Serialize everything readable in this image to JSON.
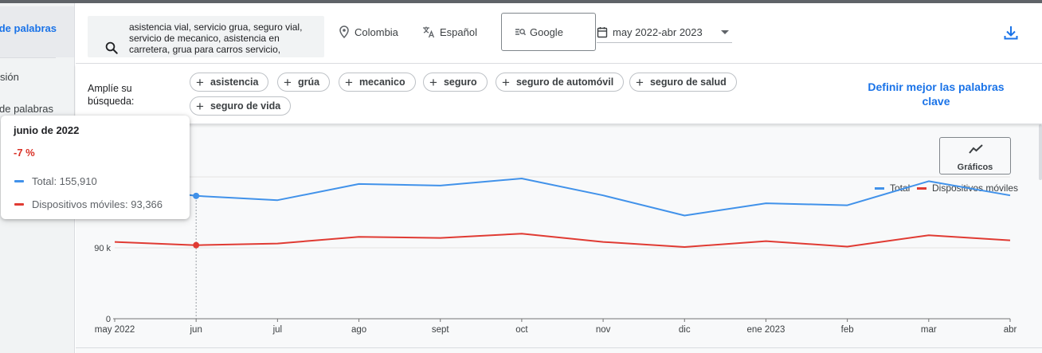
{
  "sidebar": {
    "items": [
      {
        "label": "de palabras",
        "active": true
      },
      {
        "label": "sión"
      },
      {
        "label": "de palabras"
      }
    ]
  },
  "toolbar": {
    "search_query": "asistencia vial, servicio grua, seguro vial, servicio de mecanico, asistencia en carretera, grua para carros servicio,",
    "location": "Colombia",
    "language": "Español",
    "search_engine": "Google",
    "date_range": "may 2022-abr 2023"
  },
  "broaden": {
    "label": "Amplíe su búsqueda:",
    "chips": [
      "asistencia",
      "grúa",
      "mecanico",
      "seguro",
      "seguro de automóvil",
      "seguro de salud",
      "seguro de vida"
    ],
    "refine_link": "Definir mejor las palabras clave"
  },
  "graphs_button_label": "Gráficos",
  "colors": {
    "total": "#4192ea",
    "mobile": "#e03b33",
    "link": "#1a73e8",
    "negative": "#d93025"
  },
  "tooltip": {
    "title": "junio de 2022",
    "change": "-7 %",
    "rows": [
      {
        "label": "Total: 155,910"
      },
      {
        "label": "Dispositivos móviles: 93,366"
      }
    ]
  },
  "chart_data": {
    "type": "line",
    "categories": [
      "may 2022",
      "jun",
      "jul",
      "ago",
      "sept",
      "oct",
      "nov",
      "dic",
      "ene 2023",
      "feb",
      "mar",
      "abr"
    ],
    "series": [
      {
        "name": "Total",
        "color": "#4192ea",
        "values": [
          168000,
          155910,
          150500,
          171000,
          169000,
          178000,
          156500,
          131000,
          146500,
          144000,
          174500,
          156500
        ]
      },
      {
        "name": "Dispositivos móviles",
        "color": "#e03b33",
        "values": [
          97500,
          93366,
          95500,
          104000,
          102500,
          108000,
          97500,
          91000,
          98500,
          91500,
          106000,
          99500
        ]
      }
    ],
    "yticks": [
      {
        "value": 0,
        "label": "0"
      },
      {
        "value": 90000,
        "label": "90 k"
      }
    ],
    "ylim": [
      0,
      180000
    ],
    "highlighted_category": "jun",
    "legend_position": "top-right",
    "grid": true
  }
}
